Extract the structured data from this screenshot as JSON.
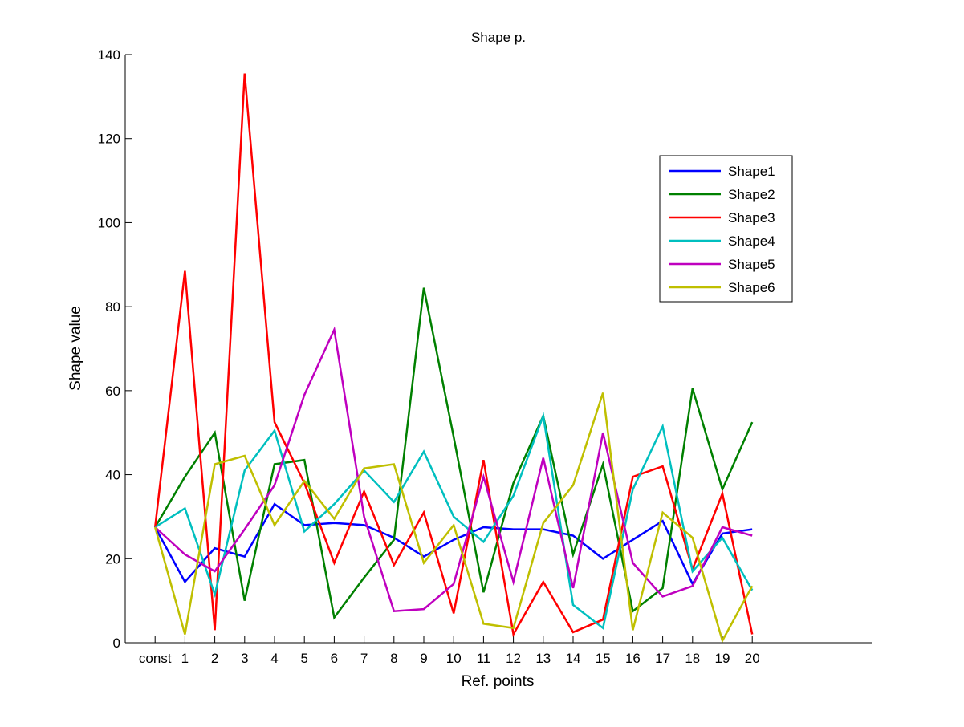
{
  "chart_data": {
    "type": "line",
    "title": "Shape p.",
    "xlabel": "Ref. points",
    "ylabel": "Shape value",
    "categories": [
      "const",
      "1",
      "2",
      "3",
      "4",
      "5",
      "6",
      "7",
      "8",
      "9",
      "10",
      "11",
      "12",
      "13",
      "14",
      "15",
      "16",
      "17",
      "18",
      "19",
      "20"
    ],
    "xlim": [
      -1,
      24
    ],
    "ylim": [
      0,
      140
    ],
    "yticks": [
      0,
      20,
      40,
      60,
      80,
      100,
      120,
      140
    ],
    "grid": false,
    "legend_position": "upper-right",
    "series": [
      {
        "name": "Shape1",
        "color": "#0000ff",
        "values": [
          27.5,
          14.5,
          22.5,
          20.5,
          33,
          28,
          28.5,
          28,
          25,
          20.5,
          24.5,
          27.5,
          27,
          27,
          25.5,
          20,
          24.5,
          29,
          14,
          26,
          27
        ]
      },
      {
        "name": "Shape2",
        "color": "#008000",
        "values": [
          27.5,
          39.5,
          50,
          10,
          42.5,
          43.5,
          6,
          15.5,
          24.5,
          84.5,
          49,
          12,
          38,
          54,
          21,
          42.5,
          7.5,
          13,
          60.5,
          36.5,
          52.5
        ]
      },
      {
        "name": "Shape3",
        "color": "#ff0000",
        "values": [
          27.5,
          88.5,
          3,
          135.5,
          52.5,
          38,
          19,
          36,
          18.5,
          31,
          7,
          43.5,
          2,
          14.5,
          2.5,
          5.5,
          39.5,
          42,
          17.5,
          35.5,
          2
        ]
      },
      {
        "name": "Shape4",
        "color": "#00bfbf",
        "values": [
          27.5,
          32,
          11.5,
          41,
          50.5,
          26.5,
          33,
          41,
          33.5,
          45.5,
          30,
          24,
          35,
          54,
          9,
          3.5,
          36.5,
          51.5,
          17,
          25,
          12.5
        ]
      },
      {
        "name": "Shape5",
        "color": "#bf00bf",
        "values": [
          27.5,
          21,
          17,
          27,
          37.5,
          59,
          74.5,
          30,
          7.5,
          8,
          14,
          39.5,
          14.5,
          44,
          13,
          50,
          19,
          11,
          13.5,
          27.5,
          25.5
        ]
      },
      {
        "name": "Shape6",
        "color": "#bfbf00",
        "values": [
          27.5,
          2,
          42.5,
          44.5,
          28,
          38.5,
          29.5,
          41.5,
          42.5,
          19,
          28,
          4.5,
          3.5,
          28.5,
          37.5,
          59.5,
          3,
          31,
          25,
          0.5,
          13.5
        ]
      }
    ]
  }
}
